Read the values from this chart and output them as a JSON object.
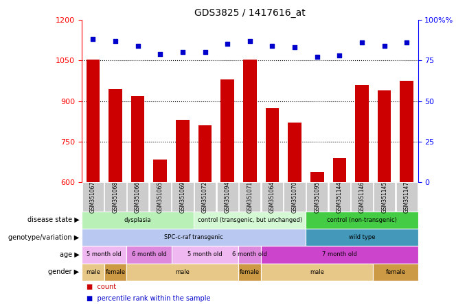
{
  "title": "GDS3825 / 1417616_at",
  "samples": [
    "GSM351067",
    "GSM351068",
    "GSM351066",
    "GSM351065",
    "GSM351069",
    "GSM351072",
    "GSM351094",
    "GSM351071",
    "GSM351064",
    "GSM351070",
    "GSM351095",
    "GSM351144",
    "GSM351146",
    "GSM351145",
    "GSM351147"
  ],
  "counts": [
    1052,
    945,
    920,
    685,
    830,
    810,
    980,
    1053,
    873,
    820,
    640,
    690,
    960,
    940,
    975
  ],
  "percentiles": [
    88,
    87,
    84,
    79,
    80,
    80,
    85,
    87,
    84,
    83,
    77,
    78,
    86,
    84,
    86
  ],
  "ylim_left": [
    600,
    1200
  ],
  "ylim_right": [
    0,
    100
  ],
  "yticks_left": [
    600,
    750,
    900,
    1050,
    1200
  ],
  "yticks_right": [
    0,
    25,
    50,
    75,
    100
  ],
  "bar_color": "#cc0000",
  "dot_color": "#0000cc",
  "disease_state_groups": [
    {
      "label": "dysplasia",
      "start": 0,
      "end": 4,
      "color": "#b8f0b8"
    },
    {
      "label": "control (transgenic, but unchanged)",
      "start": 5,
      "end": 9,
      "color": "#d4f7d4"
    },
    {
      "label": "control (non-transgenic)",
      "start": 10,
      "end": 14,
      "color": "#44cc44"
    }
  ],
  "genotype_groups": [
    {
      "label": "SPC-c-raf transgenic",
      "start": 0,
      "end": 9,
      "color": "#b8c8f0"
    },
    {
      "label": "wild type",
      "start": 10,
      "end": 14,
      "color": "#4499bb"
    }
  ],
  "age_groups": [
    {
      "label": "5 month old",
      "start": 0,
      "end": 1,
      "color": "#f0b8f0"
    },
    {
      "label": "6 month old",
      "start": 2,
      "end": 3,
      "color": "#dd88dd"
    },
    {
      "label": "5 month old",
      "start": 4,
      "end": 6,
      "color": "#f0b8f0"
    },
    {
      "label": "6 month old",
      "start": 7,
      "end": 7,
      "color": "#dd88dd"
    },
    {
      "label": "7 month old",
      "start": 8,
      "end": 14,
      "color": "#cc44cc"
    }
  ],
  "gender_groups": [
    {
      "label": "male",
      "start": 0,
      "end": 0,
      "color": "#e8c888"
    },
    {
      "label": "female",
      "start": 1,
      "end": 1,
      "color": "#cc9944"
    },
    {
      "label": "male",
      "start": 2,
      "end": 6,
      "color": "#e8c888"
    },
    {
      "label": "female",
      "start": 7,
      "end": 7,
      "color": "#cc9944"
    },
    {
      "label": "male",
      "start": 8,
      "end": 12,
      "color": "#e8c888"
    },
    {
      "label": "female",
      "start": 13,
      "end": 14,
      "color": "#cc9944"
    }
  ],
  "row_labels": [
    "disease state",
    "genotype/variation",
    "age",
    "gender"
  ],
  "legend_items": [
    {
      "label": "count",
      "color": "#cc0000"
    },
    {
      "label": "percentile rank within the sample",
      "color": "#0000cc"
    }
  ]
}
